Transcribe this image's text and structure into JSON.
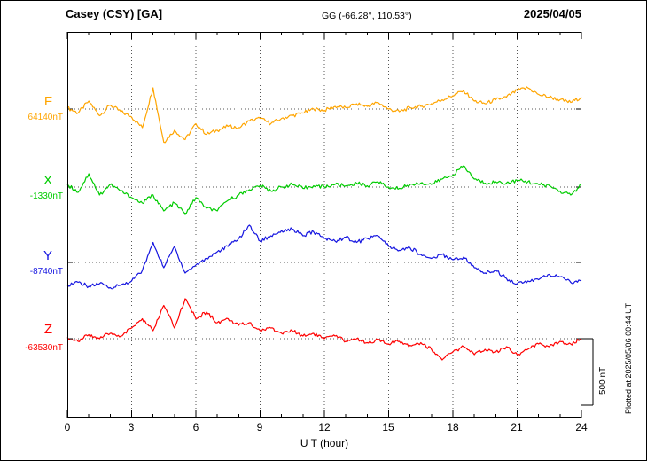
{
  "header": {
    "station": "Casey (CSY)  [GA]",
    "coords": "GG (-66.28°, 110.53°)",
    "date": "2025/04/05"
  },
  "footer": {
    "plotted_note": "Plotted at 2025/05/06 00:44 UT"
  },
  "scale_bar": {
    "label": "500 nT",
    "span_nT": 500
  },
  "x_axis": {
    "label": "U T (hour)",
    "range": [
      0,
      24
    ],
    "tick_labels": [
      "0",
      "3",
      "6",
      "9",
      "12",
      "15",
      "18",
      "21",
      "24"
    ]
  },
  "chart_data": {
    "type": "line",
    "title": "Casey (CSY) [GA] magnetogram 2025/04/05",
    "xlabel": "U T (hour)",
    "x_range": [
      0,
      24
    ],
    "x_step_hours": 0.5,
    "offsets_unit": "nT relative to baseline",
    "grid": "dotted vertical every 3 h, dotted horizontal at each baseline",
    "scale_nT": 500,
    "series": [
      {
        "name": "F",
        "color": "#FFA500",
        "baseline_label": "64140nT",
        "baseline_nT": 64140,
        "offsets_nT": [
          10,
          -30,
          60,
          -50,
          30,
          -20,
          -60,
          -140,
          160,
          -250,
          -160,
          -230,
          -110,
          -190,
          -160,
          -130,
          -140,
          -90,
          -70,
          -110,
          -70,
          -50,
          -30,
          0,
          -10,
          20,
          10,
          40,
          20,
          50,
          0,
          -20,
          10,
          20,
          40,
          70,
          100,
          140,
          60,
          40,
          70,
          90,
          140,
          160,
          110,
          90,
          70,
          50,
          90
        ]
      },
      {
        "name": "X",
        "color": "#00CC00",
        "baseline_label": "-1330nT",
        "baseline_nT": -1330,
        "offsets_nT": [
          20,
          -40,
          100,
          -60,
          20,
          -30,
          -80,
          -120,
          -60,
          -180,
          -120,
          -200,
          -80,
          -160,
          -180,
          -100,
          -60,
          -20,
          10,
          -30,
          0,
          20,
          -10,
          10,
          0,
          20,
          10,
          30,
          10,
          40,
          0,
          -10,
          20,
          30,
          20,
          60,
          90,
          160,
          60,
          30,
          40,
          30,
          50,
          40,
          20,
          10,
          -30,
          -60,
          20
        ]
      },
      {
        "name": "Y",
        "color": "#1515E0",
        "baseline_label": "-8740nT",
        "baseline_nT": -8740,
        "offsets_nT": [
          -170,
          -150,
          -180,
          -160,
          -190,
          -170,
          -140,
          -60,
          150,
          -40,
          120,
          -80,
          -20,
          30,
          80,
          120,
          180,
          280,
          160,
          200,
          240,
          250,
          200,
          230,
          180,
          160,
          190,
          150,
          180,
          200,
          120,
          90,
          110,
          60,
          30,
          60,
          20,
          40,
          -40,
          -80,
          -60,
          -120,
          -160,
          -140,
          -130,
          -90,
          -110,
          -150,
          -140
        ]
      },
      {
        "name": "Z",
        "color": "#FF0000",
        "baseline_label": "-63530nT",
        "baseline_nT": -63530,
        "offsets_nT": [
          10,
          -20,
          30,
          0,
          40,
          20,
          80,
          150,
          60,
          250,
          80,
          300,
          150,
          200,
          120,
          150,
          100,
          120,
          60,
          80,
          40,
          60,
          20,
          40,
          0,
          20,
          -20,
          0,
          -30,
          -10,
          -40,
          -20,
          -50,
          -30,
          -80,
          -160,
          -100,
          -60,
          -120,
          -80,
          -100,
          -60,
          -120,
          -80,
          -40,
          -60,
          -20,
          -40,
          0
        ]
      }
    ]
  }
}
